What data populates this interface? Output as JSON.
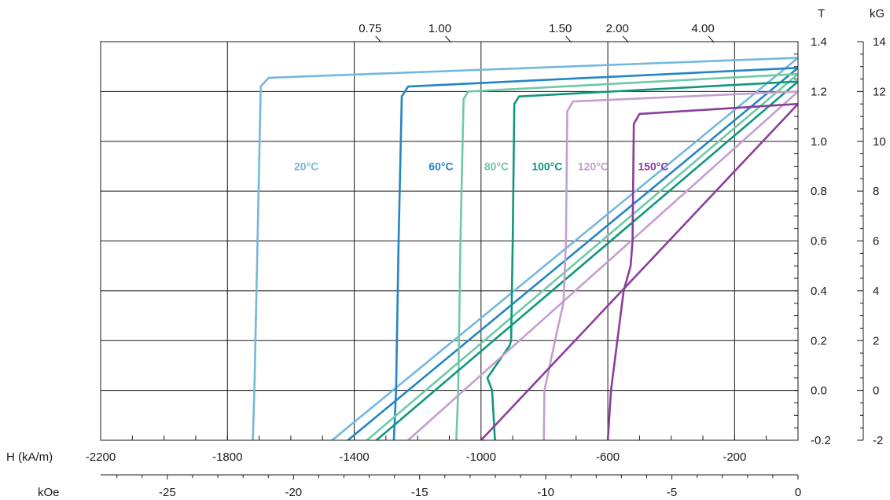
{
  "chart_data": {
    "type": "line",
    "title": "",
    "x_axis": {
      "title": "H (kA/m)",
      "range": [
        -2200,
        0
      ],
      "tick_labels": [
        "-2200",
        "-1800",
        "-1400",
        "-1000",
        "-600",
        "-200"
      ],
      "tick_values": [
        -2200,
        -1800,
        -1400,
        -1000,
        -600,
        -200
      ]
    },
    "x2_axis": {
      "title": "kOe",
      "range": [
        -27.646,
        0
      ],
      "tick_labels": [
        "-25",
        "-20",
        "-15",
        "-10",
        "-5",
        "0"
      ],
      "tick_values": [
        -25,
        -20,
        -15,
        -10,
        -5,
        0
      ]
    },
    "y_axis": {
      "title": "T",
      "range": [
        -0.2,
        1.4
      ],
      "tick_labels": [
        "1.4",
        "1.2",
        "1.0",
        "0.8",
        "0.6",
        "0.4",
        "0.2",
        "0.0",
        "-0.2"
      ],
      "tick_values": [
        1.4,
        1.2,
        1.0,
        0.8,
        0.6,
        0.4,
        0.2,
        0.0,
        -0.2
      ]
    },
    "y2_axis": {
      "title": "kG",
      "range": [
        -2,
        14
      ],
      "tick_labels": [
        "14",
        "12",
        "10",
        "8",
        "6",
        "4",
        "2",
        "0",
        "-2"
      ],
      "tick_values": [
        14,
        12,
        10,
        8,
        6,
        4,
        2,
        0,
        -2
      ]
    },
    "permeance_lines": {
      "labels": [
        "0.75",
        "1.00",
        "1.50",
        "2.00",
        "4.00"
      ],
      "x_at_top": [
        -1320,
        -1100,
        -720,
        -540,
        -270
      ]
    },
    "grid": true,
    "series": [
      {
        "name": "20°C",
        "color": "#74b8de",
        "label_at": [
          -1590,
          0.9
        ],
        "x": [
          0,
          -1670,
          -1695,
          -1705,
          -1715,
          -1720
        ],
        "y": [
          1.335,
          1.255,
          1.22,
          0.6,
          0.0,
          -0.2
        ],
        "recoil_x": [
          0,
          -1470
        ],
        "recoil_y": [
          1.335,
          -0.2
        ]
      },
      {
        "name": "60°C",
        "color": "#2386c4",
        "label_at": [
          -1165,
          0.9
        ],
        "x": [
          0,
          -1230,
          -1250,
          -1260,
          -1268,
          -1275
        ],
        "y": [
          1.295,
          1.22,
          1.18,
          0.6,
          0.0,
          -0.2
        ],
        "recoil_x": [
          0,
          -1420
        ],
        "recoil_y": [
          1.295,
          -0.2
        ]
      },
      {
        "name": "80°C",
        "color": "#6ec9a7",
        "label_at": [
          -990,
          0.9
        ],
        "x": [
          0,
          -1040,
          -1055,
          -1065,
          -1072,
          -1078
        ],
        "y": [
          1.27,
          1.2,
          1.17,
          0.6,
          0.0,
          -0.2
        ],
        "recoil_x": [
          0,
          -1360
        ],
        "recoil_y": [
          1.27,
          -0.2
        ]
      },
      {
        "name": "100°C",
        "color": "#10987a",
        "label_at": [
          -840,
          0.9
        ],
        "x": [
          0,
          -880,
          -895,
          -900,
          -905,
          -910,
          -980,
          -965,
          -956
        ],
        "y": [
          1.24,
          1.18,
          1.15,
          0.6,
          0.2,
          0.18,
          0.05,
          0.0,
          -0.2
        ],
        "recoil_x": [
          0,
          -1330
        ],
        "recoil_y": [
          1.24,
          -0.2
        ]
      },
      {
        "name": "120°C",
        "color": "#c39fd0",
        "label_at": [
          -695,
          0.9
        ],
        "x": [
          0,
          -710,
          -728,
          -732,
          -740,
          -758,
          -800,
          -802
        ],
        "y": [
          1.2,
          1.16,
          1.12,
          0.6,
          0.35,
          0.25,
          0.0,
          -0.2
        ],
        "recoil_x": [
          0,
          -1230
        ],
        "recoil_y": [
          1.2,
          -0.2
        ]
      },
      {
        "name": "150°C",
        "color": "#8b3d9b",
        "label_at": [
          -505,
          0.9
        ],
        "x": [
          0,
          -500,
          -518,
          -522,
          -528,
          -550,
          -590,
          -600
        ],
        "y": [
          1.15,
          1.11,
          1.07,
          0.6,
          0.5,
          0.4,
          0.0,
          -0.2
        ],
        "recoil_x": [
          0,
          -1000
        ],
        "recoil_y": [
          1.15,
          -0.2
        ]
      }
    ]
  }
}
